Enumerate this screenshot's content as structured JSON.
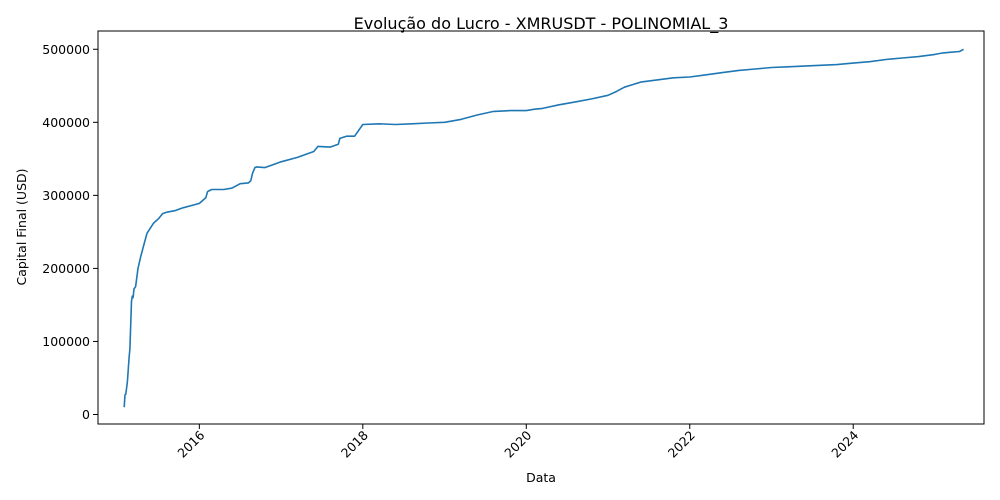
{
  "chart_data": {
    "type": "line",
    "title": "Evolução do Lucro - XMRUSDT - POLINOMIAL_3",
    "xlabel": "Data",
    "ylabel": "Capital Final (USD)",
    "xlim": [
      2014.76,
      2025.6
    ],
    "ylim": [
      -13000,
      525000
    ],
    "x_ticks": [
      2016,
      2018,
      2020,
      2022,
      2024
    ],
    "x_tick_labels": [
      "2016",
      "2018",
      "2020",
      "2022",
      "2024"
    ],
    "y_ticks": [
      0,
      100000,
      200000,
      300000,
      400000,
      500000
    ],
    "y_tick_labels": [
      "0",
      "100000",
      "200000",
      "300000",
      "400000",
      "500000"
    ],
    "grid": false,
    "series": [
      {
        "color": "#1f77b4",
        "x": [
          2015.08,
          2015.09,
          2015.1,
          2015.12,
          2015.14,
          2015.15,
          2015.17,
          2015.18,
          2015.19,
          2015.2,
          2015.22,
          2015.25,
          2015.28,
          2015.32,
          2015.36,
          2015.4,
          2015.44,
          2015.5,
          2015.55,
          2015.6,
          2015.7,
          2015.8,
          2015.9,
          2016.0,
          2016.08,
          2016.1,
          2016.15,
          2016.2,
          2016.3,
          2016.4,
          2016.5,
          2016.6,
          2016.63,
          2016.65,
          2016.68,
          2016.7,
          2016.8,
          2016.9,
          2017.0,
          2017.2,
          2017.4,
          2017.45,
          2017.6,
          2017.7,
          2017.72,
          2017.8,
          2017.9,
          2018.0,
          2018.2,
          2018.4,
          2018.6,
          2018.8,
          2019.0,
          2019.2,
          2019.4,
          2019.6,
          2019.8,
          2020.0,
          2020.1,
          2020.2,
          2020.4,
          2020.6,
          2020.8,
          2021.0,
          2021.1,
          2021.2,
          2021.4,
          2021.6,
          2021.8,
          2022.0,
          2022.2,
          2022.4,
          2022.6,
          2022.8,
          2023.0,
          2023.2,
          2023.4,
          2023.6,
          2023.8,
          2024.0,
          2024.2,
          2024.4,
          2024.6,
          2024.8,
          2025.0,
          2025.1,
          2025.2,
          2025.3,
          2025.35
        ],
        "values": [
          10000,
          27000,
          28000,
          45000,
          78000,
          90000,
          155000,
          162000,
          160000,
          172000,
          175000,
          200000,
          215000,
          232000,
          248000,
          255000,
          262000,
          268000,
          275000,
          277000,
          279000,
          283000,
          286000,
          289000,
          297000,
          305000,
          308000,
          308000,
          308000,
          310000,
          316000,
          317000,
          320000,
          330000,
          338000,
          339000,
          338000,
          342000,
          346000,
          352000,
          360000,
          367000,
          366000,
          370000,
          378000,
          381000,
          381000,
          397000,
          398000,
          397000,
          398000,
          399000,
          400000,
          404000,
          410000,
          415000,
          416000,
          416000,
          418000,
          419000,
          424000,
          428000,
          432000,
          437000,
          442000,
          448000,
          455000,
          458000,
          461000,
          462000,
          465000,
          468000,
          471000,
          473000,
          475000,
          476000,
          477000,
          478000,
          479000,
          481000,
          483000,
          486000,
          488000,
          490000,
          493000,
          495000,
          496000,
          497000,
          500000
        ]
      }
    ]
  }
}
